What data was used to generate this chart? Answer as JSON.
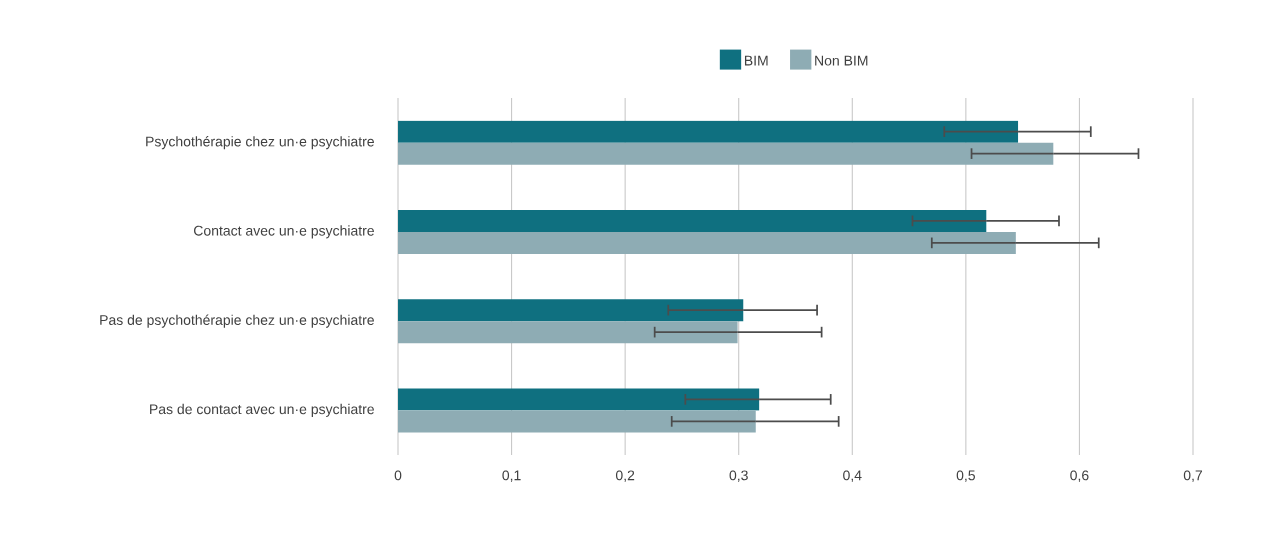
{
  "chart_data": {
    "type": "bar",
    "orientation": "horizontal",
    "categories": [
      "Psychothérapie chez un·e psychiatre",
      "Contact avec un·e psychiatre",
      "Pas de psychothérapie chez un·e psychiatre",
      "Pas de contact avec un·e psychiatre"
    ],
    "series": [
      {
        "name": "BIM",
        "color": "#0f7080",
        "values": [
          0.546,
          0.518,
          0.304,
          0.318
        ],
        "errors": [
          [
            0.481,
            0.61
          ],
          [
            0.453,
            0.582
          ],
          [
            0.238,
            0.369
          ],
          [
            0.253,
            0.381
          ]
        ]
      },
      {
        "name": "Non BIM",
        "color": "#8eacb4",
        "values": [
          0.577,
          0.544,
          0.299,
          0.315
        ],
        "errors": [
          [
            0.505,
            0.652
          ],
          [
            0.47,
            0.617
          ],
          [
            0.226,
            0.373
          ],
          [
            0.241,
            0.388
          ]
        ]
      }
    ],
    "xlim": [
      0,
      0.7
    ],
    "xticks": [
      0,
      {
        "value": 0.1,
        "label": "0,1"
      },
      {
        "value": 0.2,
        "label": "0,2"
      },
      {
        "value": 0.3,
        "label": "0,3"
      },
      {
        "value": 0.4,
        "label": "0,4"
      },
      {
        "value": 0.5,
        "label": "0,5"
      },
      {
        "value": 0.6,
        "label": "0,6"
      },
      {
        "value": 0.7,
        "label": "0,7"
      }
    ],
    "grid": "x",
    "legend": "top"
  }
}
